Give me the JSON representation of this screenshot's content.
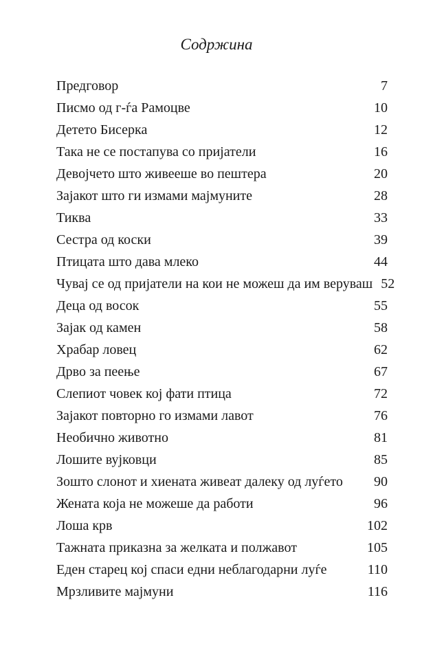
{
  "page": {
    "title": "Содржина",
    "entries": [
      {
        "title": "Предговор",
        "page": "7"
      },
      {
        "title": "Писмо од г-ѓа Рамоцве",
        "page": "10"
      },
      {
        "title": "Детето Бисерка",
        "page": "12"
      },
      {
        "title": "Така не се постапува со пријатели",
        "page": "16"
      },
      {
        "title": "Девојчето што живееше во пештера",
        "page": "20"
      },
      {
        "title": "Зајакот што ги измами мајмуните",
        "page": "28"
      },
      {
        "title": "Тиква",
        "page": "33"
      },
      {
        "title": "Сестра од коски",
        "page": "39"
      },
      {
        "title": "Птицата што дава млеко",
        "page": "44"
      },
      {
        "title": "Чувај се од пријатели на кои не можеш да им веруваш",
        "page": "52"
      },
      {
        "title": "Деца од восок",
        "page": "55"
      },
      {
        "title": "Зајак од камен",
        "page": "58"
      },
      {
        "title": "Храбар ловец",
        "page": "62"
      },
      {
        "title": "Дрво за пеење",
        "page": "67"
      },
      {
        "title": "Слепиот човек кој фати птица",
        "page": "72"
      },
      {
        "title": "Зајакот повторно го измами лавот",
        "page": "76"
      },
      {
        "title": "Необично животно",
        "page": "81"
      },
      {
        "title": "Лошите вујковци",
        "page": "85"
      },
      {
        "title": "Зошто слонот и хиената живеат далеку од луѓето",
        "page": "90"
      },
      {
        "title": "Жената која не можеше да работи",
        "page": "96"
      },
      {
        "title": "Лоша крв",
        "page": "102"
      },
      {
        "title": "Тажната приказна за желката и полжавот",
        "page": "105"
      },
      {
        "title": "Еден старец кој спаси едни неблагодарни луѓе",
        "page": "110"
      },
      {
        "title": "Мрзливите мајмуни",
        "page": "116"
      }
    ]
  }
}
